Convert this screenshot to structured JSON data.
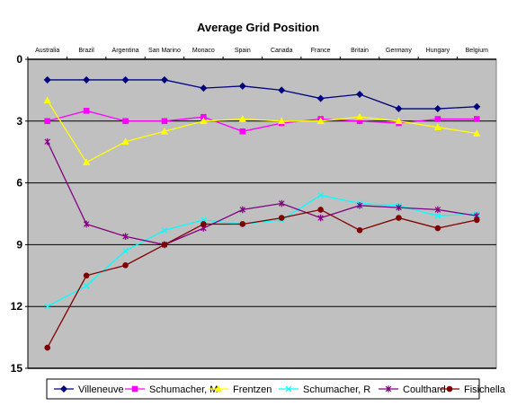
{
  "chart_data": {
    "type": "line",
    "title": "Average Grid Position",
    "xlabel": "",
    "ylabel": "",
    "categories": [
      "Australia",
      "Brazil",
      "Argentina",
      "San Marino",
      "Monaco",
      "Spain",
      "Canada",
      "France",
      "Britain",
      "Germany",
      "Hungary",
      "Belgium"
    ],
    "ylim": [
      0,
      15
    ],
    "y_inverted": true,
    "yticks": [
      0,
      3,
      6,
      9,
      12,
      15
    ],
    "grid": "horizontal",
    "x_axis_position": "top",
    "legend_position": "bottom",
    "plot_background": "#c0c0c0",
    "series": [
      {
        "name": "Villeneuve",
        "color": "#000080",
        "marker": "diamond",
        "values": [
          1.0,
          1.0,
          1.0,
          1.0,
          1.4,
          1.3,
          1.5,
          1.9,
          1.7,
          2.4,
          2.4,
          2.3
        ]
      },
      {
        "name": "Schumacher, M",
        "color": "#ff00ff",
        "marker": "square",
        "values": [
          3.0,
          2.5,
          3.0,
          3.0,
          2.8,
          3.5,
          3.1,
          2.9,
          3.0,
          3.1,
          2.9,
          2.9
        ]
      },
      {
        "name": "Frentzen",
        "color": "#ffff00",
        "marker": "triangle",
        "values": [
          2.0,
          5.0,
          4.0,
          3.5,
          3.0,
          2.9,
          3.0,
          3.0,
          2.8,
          3.0,
          3.3,
          3.6
        ]
      },
      {
        "name": "Schumacher, R",
        "color": "#00ffff",
        "marker": "x",
        "values": [
          12.0,
          11.0,
          9.3,
          8.3,
          7.8,
          8.0,
          7.8,
          6.6,
          7.0,
          7.1,
          7.6,
          7.5
        ]
      },
      {
        "name": "Coulthard",
        "color": "#800080",
        "marker": "star",
        "values": [
          4.0,
          8.0,
          8.6,
          9.0,
          8.2,
          7.3,
          7.0,
          7.7,
          7.1,
          7.2,
          7.3,
          7.6
        ]
      },
      {
        "name": "Fisichella",
        "color": "#800000",
        "marker": "circle",
        "values": [
          14.0,
          10.5,
          10.0,
          9.0,
          8.0,
          8.0,
          7.7,
          7.3,
          8.3,
          7.7,
          8.2,
          7.8
        ]
      }
    ]
  }
}
